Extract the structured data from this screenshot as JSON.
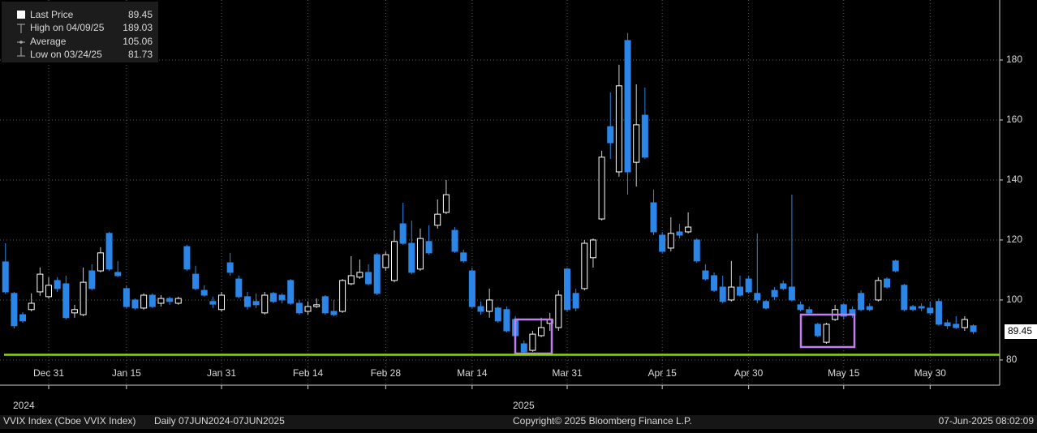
{
  "chart_data": {
    "type": "candlestick",
    "categories": [
      null,
      null,
      null,
      null,
      null,
      "Dec 31",
      null,
      null,
      null,
      null,
      null,
      null,
      null,
      null,
      "Jan 15",
      null,
      null,
      null,
      null,
      null,
      null,
      null,
      null,
      null,
      null,
      "Jan 31",
      null,
      null,
      null,
      null,
      null,
      null,
      null,
      null,
      null,
      "Feb 14",
      null,
      null,
      null,
      null,
      null,
      null,
      null,
      null,
      "Feb 28",
      null,
      null,
      null,
      null,
      null,
      null,
      null,
      null,
      null,
      "Mar 14",
      null,
      null,
      null,
      null,
      null,
      null,
      null,
      null,
      null,
      null,
      "Mar 31",
      null,
      null,
      null,
      null,
      null,
      null,
      null,
      null,
      null,
      null,
      "Apr 15",
      null,
      null,
      null,
      null,
      null,
      null,
      null,
      null,
      null,
      "Apr 30",
      null,
      null,
      null,
      null,
      null,
      null,
      null,
      null,
      null,
      null,
      "May 15",
      null,
      null,
      null,
      null,
      null,
      null,
      null,
      null,
      null,
      "May 30",
      null,
      null,
      null,
      null,
      null
    ],
    "open": [
      112.7,
      102.2,
      95.1,
      96.8,
      102.7,
      101.1,
      106.5,
      105.4,
      95.7,
      95.1,
      109.7,
      109.7,
      122.2,
      109.2,
      103.8,
      100,
      97.3,
      101.6,
      98.9,
      100.5,
      98.9,
      117.8,
      108.6,
      103.2,
      99.5,
      96.8,
      112.4,
      107,
      101.1,
      99.5,
      95.7,
      102.2,
      101.6,
      106.5,
      98.9,
      96.2,
      97.8,
      101.1,
      96.2,
      96.2,
      105.4,
      107.6,
      109.2,
      115.1,
      110.8,
      106.5,
      125.4,
      118.9,
      110.3,
      119.5,
      124.9,
      129.2,
      123.2,
      115.7,
      109.7,
      97.8,
      96.2,
      97.3,
      96.8,
      93.5,
      85.4,
      83.2,
      88.1,
      92.2,
      90.8,
      110.3,
      102.2,
      103.8,
      114.1,
      127,
      157.8,
      142.7,
      186.5,
      145.9,
      161.6,
      132.4,
      121.6,
      117.3,
      122.7,
      122.7,
      120,
      109.7,
      108.1,
      104.3,
      100,
      104.3,
      107,
      102.2,
      99.5,
      103.2,
      105.4,
      104.3,
      98.4,
      96.8,
      91.9,
      85.9,
      93.5,
      98.4,
      96.8,
      102.2,
      97.8,
      100,
      107,
      113,
      104.9,
      97.8,
      97.8,
      97.3,
      99.5,
      92.4,
      91.9,
      90.8,
      91.4
    ],
    "high": [
      118.9,
      102.7,
      95.9,
      102.2,
      110.8,
      107.6,
      107.6,
      108.1,
      98.4,
      110.8,
      111.9,
      117.6,
      122.7,
      113,
      104.9,
      100.5,
      102.2,
      102.2,
      101.6,
      101.1,
      101.1,
      118.4,
      111.4,
      104.9,
      101.1,
      102.7,
      115.7,
      108.1,
      102.7,
      102.2,
      102.7,
      102.7,
      102.2,
      107,
      100,
      99.5,
      100.5,
      101.6,
      100,
      107,
      114.6,
      113.5,
      111.9,
      115.7,
      116.2,
      123.2,
      132.4,
      126.5,
      123.8,
      124.9,
      133.5,
      140,
      124.3,
      116.8,
      110.8,
      99.5,
      103.8,
      97.8,
      97.8,
      94.6,
      86.5,
      89.7,
      94.1,
      95.7,
      103.2,
      110.8,
      103.8,
      120,
      120.5,
      149.7,
      169.2,
      178.4,
      189.03,
      171.9,
      170.8,
      136.8,
      122.7,
      127.6,
      125.4,
      129.2,
      120.5,
      111.9,
      109.2,
      108.1,
      113,
      108.1,
      108.1,
      122.2,
      100,
      104.3,
      106.5,
      135.1,
      99.5,
      97.8,
      92.4,
      92.4,
      98.4,
      98.9,
      97.8,
      103.2,
      98.9,
      107.6,
      107.6,
      113.5,
      105.4,
      98.4,
      98.9,
      99.5,
      100.5,
      93.5,
      94.6,
      94.6,
      91.9
    ],
    "low": [
      102,
      90.5,
      92.4,
      96.2,
      101.4,
      100.5,
      102.7,
      93.5,
      94.1,
      94.6,
      103.2,
      109.2,
      109.7,
      107.6,
      97.3,
      96.8,
      96.8,
      97.3,
      97.8,
      98.4,
      98.4,
      109.7,
      103.2,
      101.1,
      97.3,
      96.2,
      108.1,
      100.5,
      96.8,
      97.3,
      95.1,
      98.9,
      98.9,
      98.4,
      95.1,
      95.1,
      97.3,
      95.1,
      94.6,
      95.7,
      104.9,
      107,
      104.9,
      101.6,
      109.7,
      105.9,
      118.4,
      108.6,
      109.7,
      115.1,
      123.8,
      128.6,
      115.7,
      112.4,
      97.3,
      95.1,
      94.1,
      92.4,
      89.2,
      87.6,
      81.73,
      82.7,
      87.6,
      89.7,
      89.7,
      96.2,
      96.2,
      103.2,
      110.8,
      126.5,
      147,
      141.1,
      135.1,
      137.8,
      147,
      121.6,
      115.7,
      116.2,
      120.5,
      122.2,
      112.4,
      106.5,
      102.7,
      98.9,
      99.5,
      101.1,
      102.2,
      98.9,
      96.8,
      100,
      103.2,
      99.5,
      96.2,
      95.1,
      87.6,
      85.4,
      93,
      93.5,
      94.1,
      96.2,
      96.2,
      99.5,
      103.8,
      109.2,
      96.2,
      96.2,
      96.2,
      95.1,
      91.4,
      90.3,
      90.3,
      89.7,
      88.6
    ],
    "close": [
      102.7,
      91.4,
      93,
      98.9,
      108.6,
      104.9,
      103.8,
      94.1,
      96.8,
      105.9,
      103.8,
      115.7,
      110.3,
      108.1,
      97.8,
      97.3,
      101.6,
      97.8,
      100.5,
      99.5,
      100.5,
      110.3,
      103.8,
      101.6,
      98.6,
      101.6,
      109.2,
      101.1,
      97.8,
      98.4,
      101.6,
      99.5,
      100,
      98.9,
      95.7,
      97.8,
      98.4,
      95.7,
      95.1,
      106.5,
      108.1,
      109.2,
      105.4,
      102.2,
      115.1,
      119.5,
      118.9,
      109.2,
      120.5,
      115.7,
      128.6,
      135.1,
      116.2,
      113,
      97.8,
      96.2,
      100,
      93,
      89.7,
      88.1,
      82.7,
      88.6,
      90.8,
      93.5,
      101.6,
      96.8,
      97.3,
      118.9,
      120,
      147.6,
      152.4,
      171.4,
      142.7,
      158.4,
      147.6,
      122.7,
      116.2,
      122.2,
      121.6,
      124.3,
      113,
      107,
      103.2,
      99.5,
      104.3,
      101.6,
      102.7,
      100,
      97.3,
      101.1,
      103.8,
      100,
      96.8,
      95.7,
      88.1,
      91.9,
      96.8,
      94.6,
      95.1,
      96.8,
      96.8,
      106.5,
      104.3,
      109.7,
      96.8,
      96.8,
      97.3,
      95.7,
      91.9,
      91.4,
      90.8,
      93.5,
      89.45
    ],
    "up_color": "#ffffff",
    "down_color": "#2b86e8",
    "reference_color": "#8fd11a",
    "ylim": [
      71.6,
      200
    ],
    "yticks": [
      80,
      100,
      120,
      140,
      160,
      180
    ],
    "grid": true,
    "year_labels": [
      "2024",
      "2025"
    ],
    "legend": [
      {
        "label": "Last Price",
        "value": 89.45
      },
      {
        "label": "High on 04/09/25",
        "value": 189.03
      },
      {
        "label": "Average",
        "value": 105.06
      },
      {
        "label": "Low on 03/24/25",
        "value": 81.73
      }
    ],
    "footer": {
      "security": "VVIX Index (Cboe VVIX Index)",
      "period": "Daily 07JUN2024-07JUN2025",
      "copyright": "Copyright© 2025 Bloomberg Finance L.P.",
      "timestamp": "07-Jun-2025 08:02:09"
    }
  }
}
